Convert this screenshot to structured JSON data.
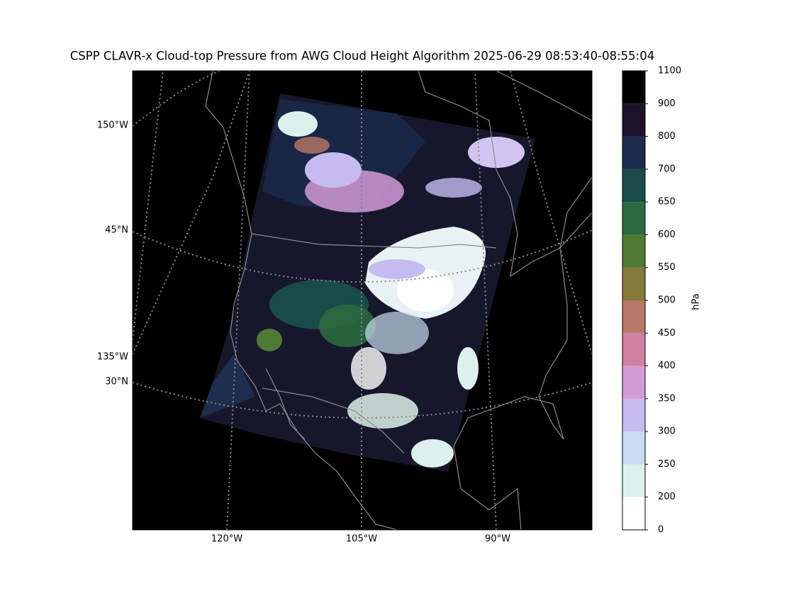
{
  "title": "CSPP CLAVR-x Cloud-top Pressure from AWG Cloud Height Algorithm 2025-06-29 08:53:40-08:55:04",
  "map": {
    "lon_labels": [
      "120°W",
      "105°W",
      "90°W"
    ],
    "left_labels": [
      "150°W",
      "45°N",
      "135°W",
      "30°N"
    ]
  },
  "colorbar": {
    "label": "hPa",
    "ticks": [
      0,
      200,
      250,
      300,
      350,
      400,
      450,
      500,
      550,
      600,
      650,
      700,
      800,
      900,
      1100
    ],
    "colors": [
      "#ffffff",
      "#ddf1ec",
      "#c7dcf1",
      "#c6bbf0",
      "#d49ad8",
      "#d27fa2",
      "#b87868",
      "#867a3a",
      "#4f7a33",
      "#2a6a3f",
      "#1a4b4b",
      "#1c2b4c",
      "#1e1229",
      "#000000"
    ]
  }
}
